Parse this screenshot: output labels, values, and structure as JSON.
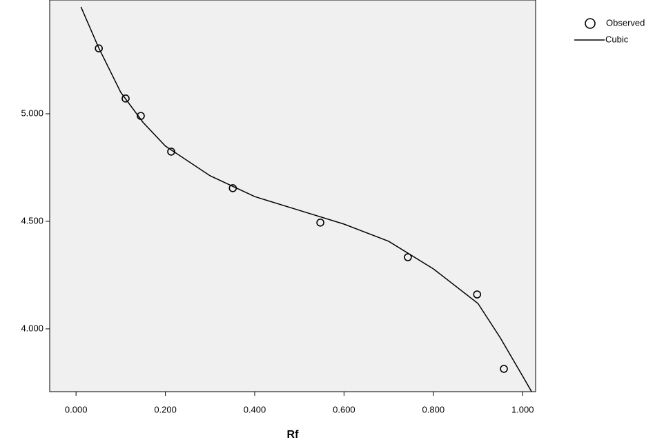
{
  "chart_data": {
    "type": "scatter",
    "x_label": "Rf",
    "xlim": [
      -0.059,
      1.029
    ],
    "ylim": [
      3.708,
      5.529
    ],
    "xticks": [
      {
        "value": 0,
        "label": "0.000"
      },
      {
        "value": 0.2,
        "label": "0.200"
      },
      {
        "value": 0.4,
        "label": "0.400"
      },
      {
        "value": 0.6,
        "label": "0.600"
      },
      {
        "value": 0.8,
        "label": "0.800"
      },
      {
        "value": 1,
        "label": "1.000"
      }
    ],
    "yticks": [
      {
        "value": 4,
        "label": "4.000"
      },
      {
        "value": 4.5,
        "label": "4.500"
      },
      {
        "value": 5,
        "label": "5.000"
      }
    ],
    "legend_position": "top-right",
    "series": [
      {
        "name": "Observed",
        "kind": "points",
        "color": "#000000",
        "x": [
          0.051,
          0.111,
          0.145,
          0.213,
          0.351,
          0.547,
          0.743,
          0.898,
          0.958
        ],
        "values": [
          5.304,
          5.071,
          4.99,
          4.824,
          4.654,
          4.494,
          4.333,
          4.16,
          3.814
        ]
      },
      {
        "name": "Cubic",
        "kind": "line",
        "color": "#000000",
        "x": [
          0.011,
          0.05,
          0.1,
          0.15,
          0.2,
          0.3,
          0.4,
          0.5,
          0.6,
          0.7,
          0.8,
          0.9,
          0.95,
          1.0,
          1.02
        ],
        "values": [
          5.497,
          5.31,
          5.1,
          4.96,
          4.85,
          4.712,
          4.615,
          4.551,
          4.487,
          4.407,
          4.279,
          4.118,
          3.958,
          3.78,
          3.708
        ]
      }
    ]
  }
}
